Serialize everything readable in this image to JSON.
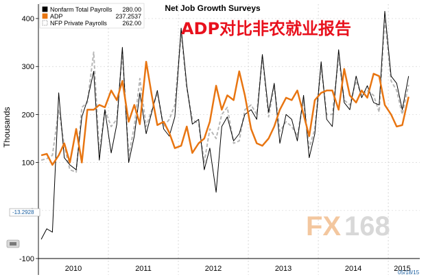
{
  "chart_data": {
    "type": "line",
    "title": "Net Job Growth Surveys",
    "overlay_title": "ADP对比非农就业报告",
    "ylabel": "Thousands",
    "ylim": [
      -100,
      430
    ],
    "yticks": [
      -100,
      0,
      100,
      200,
      300,
      400
    ],
    "ytick_labels": [
      "-100",
      "0",
      "100",
      "200",
      "300",
      "400"
    ],
    "x_start": 2010.0,
    "x_end": 2015.45,
    "years": [
      {
        "label": "2010",
        "center": 2010.5
      },
      {
        "label": "2011",
        "center": 2011.5
      },
      {
        "label": "2012",
        "center": 2012.5
      },
      {
        "label": "2013",
        "center": 2013.5
      },
      {
        "label": "2014",
        "center": 2014.5
      },
      {
        "label": "2015",
        "center": 2015.2
      }
    ],
    "year_dividers": [
      2011,
      2012,
      2013,
      2014,
      2015
    ],
    "grid": true,
    "legend_position": "top-left",
    "current_marker": "-13.2928",
    "date_label": "05/18/15",
    "watermark": {
      "fx": "FX",
      "num": "168"
    },
    "series": [
      {
        "name": "Nonfarm Total Payrolls",
        "last": "280.00",
        "color": "#000000",
        "style": "solid",
        "width": 1,
        "x": [
          2010.04,
          2010.12,
          2010.2,
          2010.29,
          2010.37,
          2010.45,
          2010.54,
          2010.62,
          2010.7,
          2010.79,
          2010.87,
          2010.95,
          2011.04,
          2011.12,
          2011.2,
          2011.29,
          2011.37,
          2011.45,
          2011.54,
          2011.62,
          2011.7,
          2011.79,
          2011.87,
          2011.95,
          2012.04,
          2012.12,
          2012.2,
          2012.29,
          2012.37,
          2012.45,
          2012.54,
          2012.62,
          2012.7,
          2012.79,
          2012.87,
          2012.95,
          2013.04,
          2013.12,
          2013.2,
          2013.29,
          2013.37,
          2013.45,
          2013.54,
          2013.62,
          2013.7,
          2013.79,
          2013.87,
          2013.95,
          2014.04,
          2014.12,
          2014.2,
          2014.29,
          2014.37,
          2014.45,
          2014.54,
          2014.62,
          2014.7,
          2014.79,
          2014.87,
          2014.95,
          2015.04,
          2015.12,
          2015.2,
          2015.29
        ],
        "values": [
          -60,
          -38,
          -45,
          245,
          110,
          95,
          85,
          195,
          230,
          290,
          105,
          210,
          120,
          180,
          340,
          100,
          155,
          245,
          160,
          205,
          250,
          170,
          155,
          195,
          380,
          260,
          180,
          190,
          85,
          130,
          38,
          175,
          195,
          145,
          160,
          200,
          210,
          190,
          325,
          205,
          265,
          140,
          200,
          190,
          145,
          240,
          110,
          160,
          310,
          190,
          175,
          335,
          225,
          210,
          280,
          235,
          260,
          225,
          220,
          415,
          280,
          265,
          210,
          280
        ]
      },
      {
        "name": "ADP",
        "last": "237.2537",
        "color": "#e87511",
        "style": "solid",
        "width": 2.5,
        "x": [
          2010.04,
          2010.12,
          2010.2,
          2010.29,
          2010.37,
          2010.45,
          2010.54,
          2010.62,
          2010.7,
          2010.79,
          2010.87,
          2010.95,
          2011.04,
          2011.12,
          2011.2,
          2011.29,
          2011.37,
          2011.45,
          2011.54,
          2011.62,
          2011.7,
          2011.79,
          2011.87,
          2011.95,
          2012.04,
          2012.12,
          2012.2,
          2012.29,
          2012.37,
          2012.45,
          2012.54,
          2012.62,
          2012.7,
          2012.79,
          2012.87,
          2012.95,
          2013.04,
          2013.12,
          2013.2,
          2013.29,
          2013.37,
          2013.45,
          2013.54,
          2013.62,
          2013.7,
          2013.79,
          2013.87,
          2013.95,
          2014.04,
          2014.12,
          2014.2,
          2014.29,
          2014.37,
          2014.45,
          2014.54,
          2014.62,
          2014.7,
          2014.79,
          2014.87,
          2014.95,
          2015.04,
          2015.12,
          2015.2,
          2015.29
        ],
        "values": [
          115,
          118,
          95,
          115,
          140,
          100,
          170,
          100,
          210,
          210,
          220,
          215,
          250,
          230,
          270,
          185,
          220,
          180,
          310,
          240,
          178,
          185,
          162,
          130,
          135,
          175,
          120,
          140,
          150,
          185,
          260,
          210,
          240,
          230,
          290,
          240,
          170,
          140,
          135,
          150,
          175,
          210,
          235,
          230,
          250,
          200,
          155,
          230,
          245,
          250,
          250,
          210,
          295,
          240,
          225,
          250,
          235,
          285,
          280,
          220,
          200,
          175,
          178,
          237
        ]
      },
      {
        "name": "NFP Private Payrolls",
        "last": "262.00",
        "color": "#b7b7b7",
        "style": "dashed",
        "width": 2,
        "x": [
          2010.04,
          2010.12,
          2010.2,
          2010.29,
          2010.37,
          2010.45,
          2010.54,
          2010.62,
          2010.7,
          2010.79,
          2010.87,
          2010.95,
          2011.04,
          2011.12,
          2011.2,
          2011.29,
          2011.37,
          2011.45,
          2011.54,
          2011.62,
          2011.7,
          2011.79,
          2011.87,
          2011.95,
          2012.04,
          2012.12,
          2012.2,
          2012.29,
          2012.37,
          2012.45,
          2012.54,
          2012.62,
          2012.7,
          2012.79,
          2012.87,
          2012.95,
          2013.04,
          2013.12,
          2013.2,
          2013.29,
          2013.37,
          2013.45,
          2013.54,
          2013.62,
          2013.7,
          2013.79,
          2013.87,
          2013.95,
          2014.04,
          2014.12,
          2014.2,
          2014.29,
          2014.37,
          2014.45,
          2014.54,
          2014.62,
          2014.7,
          2014.79,
          2014.87,
          2014.95,
          2015.04,
          2015.12,
          2015.2,
          2015.29
        ],
        "values": [
          105,
          108,
          115,
          210,
          135,
          85,
          80,
          215,
          225,
          330,
          120,
          210,
          175,
          190,
          330,
          115,
          175,
          275,
          175,
          210,
          245,
          175,
          190,
          220,
          370,
          255,
          190,
          180,
          100,
          170,
          150,
          200,
          215,
          140,
          145,
          210,
          220,
          200,
          320,
          195,
          260,
          165,
          185,
          175,
          155,
          230,
          130,
          170,
          300,
          200,
          200,
          320,
          230,
          220,
          270,
          240,
          250,
          240,
          205,
          400,
          270,
          250,
          200,
          262
        ]
      }
    ]
  }
}
